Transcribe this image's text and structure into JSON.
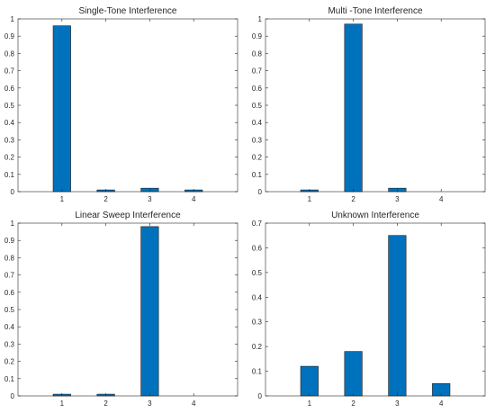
{
  "chart_data": [
    {
      "type": "bar",
      "title": "Single-Tone Interference",
      "xlabel": "",
      "ylabel": "",
      "categories": [
        "1",
        "2",
        "3",
        "4"
      ],
      "values": [
        0.96,
        0.01,
        0.02,
        0.01
      ],
      "ylim": [
        0,
        1
      ],
      "yticks": [
        "0",
        "0.1",
        "0.2",
        "0.3",
        "0.4",
        "0.5",
        "0.6",
        "0.7",
        "0.8",
        "0.9",
        "1"
      ],
      "grid": false,
      "bar_color": "#0072BD"
    },
    {
      "type": "bar",
      "title": "Multi -Tone Interference",
      "xlabel": "",
      "ylabel": "",
      "categories": [
        "1",
        "2",
        "3",
        "4"
      ],
      "values": [
        0.01,
        0.97,
        0.02,
        0.0
      ],
      "ylim": [
        0,
        1
      ],
      "yticks": [
        "0",
        "0.1",
        "0.2",
        "0.3",
        "0.4",
        "0.5",
        "0.6",
        "0.7",
        "0.8",
        "0.9",
        "1"
      ],
      "grid": false,
      "bar_color": "#0072BD"
    },
    {
      "type": "bar",
      "title": "Linear Sweep Interference",
      "xlabel": "",
      "ylabel": "",
      "categories": [
        "1",
        "2",
        "3",
        "4"
      ],
      "values": [
        0.01,
        0.01,
        0.98,
        0.0
      ],
      "ylim": [
        0,
        1
      ],
      "yticks": [
        "0",
        "0.1",
        "0.2",
        "0.3",
        "0.4",
        "0.5",
        "0.6",
        "0.7",
        "0.8",
        "0.9",
        "1"
      ],
      "grid": false,
      "bar_color": "#0072BD"
    },
    {
      "type": "bar",
      "title": "Unknown Interference",
      "xlabel": "",
      "ylabel": "",
      "categories": [
        "1",
        "2",
        "3",
        "4"
      ],
      "values": [
        0.12,
        0.18,
        0.65,
        0.05
      ],
      "ylim": [
        0,
        0.7
      ],
      "yticks": [
        "0",
        "0.1",
        "0.2",
        "0.3",
        "0.4",
        "0.5",
        "0.6",
        "0.7"
      ],
      "grid": false,
      "bar_color": "#0072BD"
    }
  ]
}
